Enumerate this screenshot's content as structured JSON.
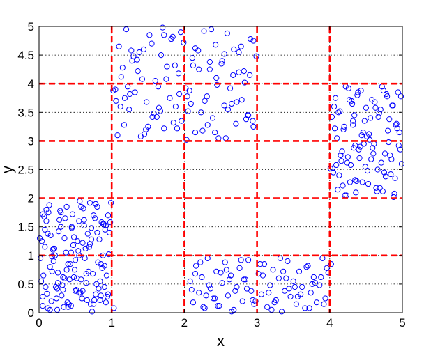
{
  "chart_data": {
    "type": "scatter",
    "title": "",
    "xlabel": "x",
    "ylabel": "y",
    "xlim": [
      0,
      5
    ],
    "ylim": [
      0,
      5
    ],
    "xticks": [
      "0",
      "1",
      "2",
      "3",
      "4",
      "5"
    ],
    "yticks": [
      "0",
      "0.5",
      "1",
      "1.5",
      "2",
      "2.5",
      "3",
      "3.5",
      "4",
      "4.5",
      "5"
    ],
    "grid": true,
    "grid_style": "dotted",
    "marker": "open-circle",
    "marker_color": "#0000ff",
    "partition_line_color": "#ff0000",
    "partition_line_style": "dashed",
    "vertical_partitions": [
      1,
      2,
      3,
      4
    ],
    "horizontal_partitions": [
      1,
      2,
      3,
      4
    ],
    "points_x": [
      0.02,
      0.05,
      0.08,
      0.11,
      0.14,
      0.18,
      0.21,
      0.25,
      0.28,
      0.32,
      0.35,
      0.39,
      0.43,
      0.46,
      0.5,
      0.54,
      0.58,
      0.62,
      0.66,
      0.7,
      0.74,
      0.78,
      0.82,
      0.86,
      0.9,
      0.94,
      0.97,
      0.03,
      0.07,
      0.12,
      0.16,
      0.2,
      0.24,
      0.29,
      0.33,
      0.37,
      0.41,
      0.45,
      0.49,
      0.53,
      0.57,
      0.61,
      0.65,
      0.69,
      0.73,
      0.77,
      0.81,
      0.85,
      0.89,
      0.93,
      0.96,
      0.99,
      0.04,
      0.09,
      0.13,
      0.17,
      0.22,
      0.26,
      0.3,
      0.34,
      0.38,
      0.42,
      0.47,
      0.51,
      0.55,
      0.59,
      0.63,
      0.67,
      0.71,
      0.75,
      0.79,
      0.83,
      0.87,
      0.91,
      0.95,
      0.06,
      0.1,
      0.15,
      0.19,
      0.23,
      0.27,
      0.31,
      0.36,
      0.4,
      0.44,
      0.48,
      0.52,
      0.56,
      0.6,
      0.64,
      0.68,
      0.72,
      0.76,
      0.8,
      0.84,
      0.88,
      0.92,
      0.98,
      0.01,
      0.05,
      0.1,
      0.15,
      0.2,
      0.25,
      0.3,
      0.35,
      0.4,
      0.45,
      0.5,
      0.55,
      0.6,
      0.65,
      0.7,
      0.75,
      0.8,
      0.85,
      0.9,
      0.95,
      0.08,
      0.26,
      0.44,
      0.62,
      0.84,
      0.12,
      0.38,
      0.58,
      0.78,
      0.92,
      0.18,
      0.48,
      0.72,
      0.05,
      0.33,
      0.55,
      0.88,
      1.03,
      1.06,
      1.1,
      1.13,
      1.17,
      1.2,
      1.24,
      1.28,
      1.32,
      1.36,
      1.4,
      1.44,
      1.48,
      1.52,
      1.56,
      1.6,
      1.64,
      1.68,
      1.72,
      1.76,
      1.8,
      1.84,
      1.88,
      1.92,
      1.96,
      1.99,
      2.03,
      2.07,
      2.11,
      2.15,
      2.19,
      2.23,
      2.27,
      2.31,
      2.35,
      2.39,
      2.43,
      2.47,
      2.51,
      2.55,
      2.59,
      2.63,
      2.67,
      2.71,
      2.75,
      2.79,
      2.83,
      2.87,
      2.91,
      2.95,
      2.99,
      1.05,
      1.15,
      1.25,
      1.35,
      1.45,
      1.55,
      1.65,
      1.75,
      1.85,
      1.95,
      2.05,
      2.15,
      2.25,
      2.35,
      2.45,
      2.55,
      2.65,
      2.75,
      2.85,
      2.95,
      1.08,
      1.22,
      1.38,
      1.58,
      1.72,
      1.9,
      2.12,
      2.28,
      2.44,
      2.6,
      2.78,
      2.94,
      1.12,
      1.3,
      1.5,
      1.7,
      1.93,
      2.2,
      2.42,
      2.68,
      2.88,
      1.18,
      1.42,
      1.62,
      1.82,
      2.02,
      2.32,
      2.52,
      2.72,
      2.9,
      1.02,
      1.27,
      1.47,
      1.67,
      1.87,
      2.09,
      2.37,
      2.57,
      2.82,
      2.04,
      2.08,
      2.12,
      2.16,
      2.2,
      2.24,
      2.28,
      2.32,
      2.36,
      2.4,
      2.44,
      2.48,
      2.52,
      2.56,
      2.6,
      2.64,
      2.68,
      2.72,
      2.76,
      2.8,
      2.84,
      2.88,
      2.92,
      2.96,
      3.02,
      3.06,
      3.1,
      3.14,
      3.18,
      3.22,
      3.26,
      3.3,
      3.34,
      3.38,
      3.42,
      3.46,
      3.5,
      3.54,
      3.58,
      3.62,
      3.66,
      3.7,
      3.74,
      3.78,
      3.82,
      3.86,
      3.9,
      3.94,
      3.98,
      2.1,
      2.22,
      2.34,
      2.46,
      2.58,
      2.7,
      2.82,
      2.94,
      3.08,
      3.2,
      3.32,
      3.44,
      3.56,
      3.68,
      3.8,
      3.92,
      2.15,
      2.3,
      2.5,
      2.65,
      2.86,
      3.04,
      3.24,
      3.4,
      3.6,
      3.76,
      3.96,
      2.26,
      2.42,
      2.62,
      2.78,
      2.98,
      3.16,
      3.36,
      3.52,
      3.72,
      3.88,
      4.02,
      4.05,
      4.08,
      4.11,
      4.14,
      4.17,
      4.2,
      4.23,
      4.26,
      4.29,
      4.32,
      4.35,
      4.38,
      4.41,
      4.44,
      4.47,
      4.5,
      4.53,
      4.56,
      4.59,
      4.62,
      4.65,
      4.68,
      4.71,
      4.74,
      4.77,
      4.8,
      4.83,
      4.86,
      4.89,
      4.92,
      4.95,
      4.98,
      4.04,
      4.1,
      4.16,
      4.22,
      4.28,
      4.34,
      4.4,
      4.46,
      4.52,
      4.58,
      4.64,
      4.7,
      4.76,
      4.82,
      4.88,
      4.94,
      4.99,
      4.07,
      4.13,
      4.19,
      4.25,
      4.31,
      4.37,
      4.43,
      4.49,
      4.55,
      4.61,
      4.67,
      4.73,
      4.79,
      4.85,
      4.91,
      4.97,
      4.06,
      4.18,
      4.3,
      4.42,
      4.54,
      4.66,
      4.78,
      4.9,
      4.12,
      4.24,
      4.36,
      4.48,
      4.6,
      4.72,
      4.84,
      4.96,
      4.09,
      4.27,
      4.45,
      4.63,
      4.81,
      4.93,
      4.21,
      4.39,
      4.57,
      4.75,
      4.87,
      4.33,
      4.51,
      4.69,
      4.03,
      4.15,
      4.32,
      4.01,
      4.35
    ],
    "points_y": [
      0.95,
      0.12,
      1.45,
      0.33,
      1.88,
      0.72,
      1.12,
      0.05,
      1.62,
      0.48,
      1.3,
      0.18,
      0.85,
      1.72,
      0.38,
      1.08,
      0.58,
      1.52,
      0.22,
      1.2,
      0.68,
      1.9,
      0.42,
      1.58,
      0.82,
      0.28,
      1.4,
      0.55,
      1.68,
      0.08,
      1.35,
      0.9,
      0.25,
      1.78,
      0.62,
      1.05,
      0.15,
      1.48,
      0.75,
      1.25,
      0.35,
      1.82,
      0.52,
      1.15,
      0.02,
      1.65,
      0.88,
      0.3,
      1.55,
      0.65,
      1.02,
      1.92,
      1.25,
      0.45,
      1.75,
      0.2,
      1.0,
      0.7,
      1.5,
      0.1,
      1.85,
      0.58,
      1.18,
      0.4,
      1.6,
      0.25,
      0.95,
      1.38,
      0.15,
      1.7,
      0.5,
      1.28,
      0.78,
      1.45,
      0.32,
      0.65,
      1.8,
      0.05,
      1.1,
      0.45,
      1.42,
      0.3,
      1.65,
      0.85,
      0.12,
      1.32,
      0.6,
      1.95,
      0.38,
      1.12,
      0.72,
      1.48,
      0.22,
      1.85,
      0.55,
      1.0,
      0.18,
      1.58,
      1.3,
      0.28,
      1.6,
      0.8,
      1.12,
      0.42,
      1.75,
      0.6,
      0.1,
      1.5,
      0.92,
      0.35,
      1.22,
      0.68,
      1.92,
      0.15,
      1.4,
      0.85,
      0.45,
      1.7,
      1.15,
      0.52,
      1.05,
      1.62,
      0.22,
      1.38,
      0.75,
      1.85,
      0.32,
      1.52,
      0.98,
      0.62,
      1.28,
      1.72,
      0.4,
      1.0,
      1.55,
      0.08,
      3.7,
      4.65,
      4.12,
      3.28,
      4.95,
      3.55,
      4.4,
      3.85,
      4.22,
      3.08,
      4.6,
      3.68,
      4.85,
      3.42,
      4.05,
      3.95,
      4.5,
      3.22,
      4.3,
      3.75,
      4.82,
      3.6,
      4.18,
      3.35,
      4.72,
      3.02,
      3.88,
      4.45,
      3.15,
      4.58,
      3.5,
      4.92,
      3.78,
      4.25,
      3.4,
      4.68,
      3.05,
      4.35,
      3.62,
      4.88,
      3.92,
      4.15,
      3.3,
      4.55,
      3.72,
      4.02,
      3.45,
      4.78,
      3.25,
      4.48,
      3.9,
      4.28,
      3.82,
      4.42,
      3.12,
      4.7,
      3.58,
      4.08,
      3.32,
      4.9,
      3.52,
      4.62,
      3.18,
      4.38,
      3.98,
      4.52,
      3.65,
      4.2,
      3.38,
      4.75,
      3.1,
      3.95,
      4.55,
      3.48,
      4.85,
      3.22,
      4.32,
      3.7,
      4.1,
      3.55,
      4.65,
      3.35,
      3.6,
      4.48,
      3.25,
      4.98,
      3.82,
      4.25,
      3.15,
      4.6,
      3.45,
      3.75,
      4.08,
      3.42,
      4.78,
      3.92,
      3.28,
      4.4,
      3.68,
      4.15,
      3.88,
      4.58,
      3.2,
      3.52,
      4.32,
      3.65,
      4.95,
      3.05,
      4.22,
      3.78,
      0.55,
      0.18,
      0.82,
      0.35,
      0.62,
      0.08,
      0.95,
      0.42,
      0.25,
      0.72,
      0.12,
      0.52,
      0.88,
      0.3,
      0.65,
      0.05,
      0.45,
      0.78,
      0.2,
      0.58,
      0.92,
      0.38,
      0.15,
      0.68,
      0.32,
      0.85,
      0.1,
      0.48,
      0.75,
      0.22,
      0.6,
      0.02,
      0.38,
      0.9,
      0.28,
      0.55,
      0.15,
      0.72,
      0.45,
      0.08,
      0.82,
      0.35,
      0.62,
      0.18,
      0.48,
      0.95,
      0.25,
      0.7,
      0.4,
      0.88,
      0.48,
      0.12,
      0.75,
      0.38,
      0.58,
      0.22,
      0.65,
      0.05,
      0.95,
      0.42,
      0.28,
      0.8,
      0.52,
      0.15,
      0.68,
      0.3,
      0.7,
      0.02,
      0.42,
      0.85,
      0.18,
      0.6,
      0.32,
      0.5,
      0.78,
      0.1,
      0.25,
      0.58,
      0.92,
      0.2,
      0.35,
      0.72,
      0.45,
      0.08,
      0.62,
      0.85,
      2.45,
      3.75,
      2.15,
      3.52,
      2.82,
      3.25,
      2.05,
      3.92,
      2.58,
      3.35,
      2.32,
      3.8,
      2.7,
      3.1,
      2.95,
      3.58,
      2.25,
      3.4,
      2.88,
      3.68,
      2.12,
      3.48,
      2.62,
      3.88,
      2.38,
      3.18,
      2.75,
      3.62,
      2.08,
      3.3,
      2.92,
      3.78,
      2.52,
      3.05,
      2.65,
      3.95,
      2.28,
      3.45,
      2.85,
      3.15,
      2.48,
      3.72,
      2.18,
      3.55,
      2.78,
      3.38,
      2.02,
      3.85,
      2.6,
      3.22,
      2.4,
      3.2,
      2.72,
      3.65,
      2.3,
      3.88,
      2.55,
      3.02,
      2.95,
      3.42,
      2.12,
      3.78,
      2.68,
      3.28,
      2.85,
      3.6,
      2.22,
      3.7,
      2.9,
      3.12,
      2.5,
      3.82,
      2.35,
      3.5,
      2.62,
      2.1,
      3.35,
      2.78,
      3.95,
      2.42,
      3.15,
      2.58,
      3.72,
      2.28,
      3.58,
      2.98,
      3.22,
      2.05,
      3.85,
      2.68,
      2.45,
      3.62,
      2.88,
      3.08,
      2.18,
      3.42,
      2.75,
      3.28,
      2.52,
      2.92,
      2.02,
      3.32,
      2.3
    ]
  }
}
